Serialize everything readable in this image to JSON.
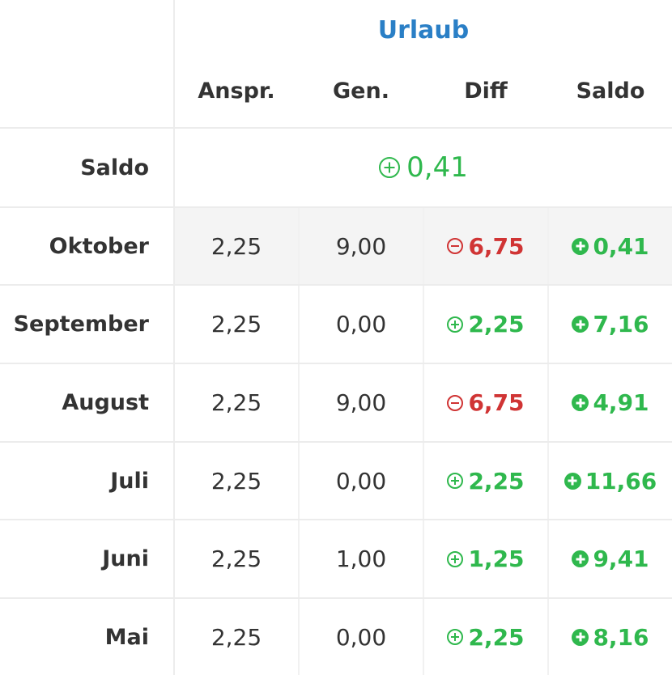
{
  "header": {
    "group_title": "Urlaub",
    "columns": [
      "Anspr.",
      "Gen.",
      "Diff",
      "Saldo"
    ]
  },
  "total": {
    "label": "Saldo",
    "value": "0,41",
    "sign": "positive"
  },
  "rows": [
    {
      "month": "Oktober",
      "anspr": "2,25",
      "gen": "9,00",
      "diff": "6,75",
      "diff_sign": "negative",
      "saldo": "0,41"
    },
    {
      "month": "September",
      "anspr": "2,25",
      "gen": "0,00",
      "diff": "2,25",
      "diff_sign": "positive",
      "saldo": "7,16"
    },
    {
      "month": "August",
      "anspr": "2,25",
      "gen": "9,00",
      "diff": "6,75",
      "diff_sign": "negative",
      "saldo": "4,91"
    },
    {
      "month": "Juli",
      "anspr": "2,25",
      "gen": "0,00",
      "diff": "2,25",
      "diff_sign": "positive",
      "saldo": "11,66"
    },
    {
      "month": "Juni",
      "anspr": "2,25",
      "gen": "1,00",
      "diff": "1,25",
      "diff_sign": "positive",
      "saldo": "9,41"
    },
    {
      "month": "Mai",
      "anspr": "2,25",
      "gen": "0,00",
      "diff": "2,25",
      "diff_sign": "positive",
      "saldo": "8,16"
    }
  ],
  "colors": {
    "accent": "#2a7fc6",
    "positive": "#2fb84d",
    "negative": "#d03434",
    "highlight_row": "#f4f4f4",
    "grid": "#ececec"
  }
}
